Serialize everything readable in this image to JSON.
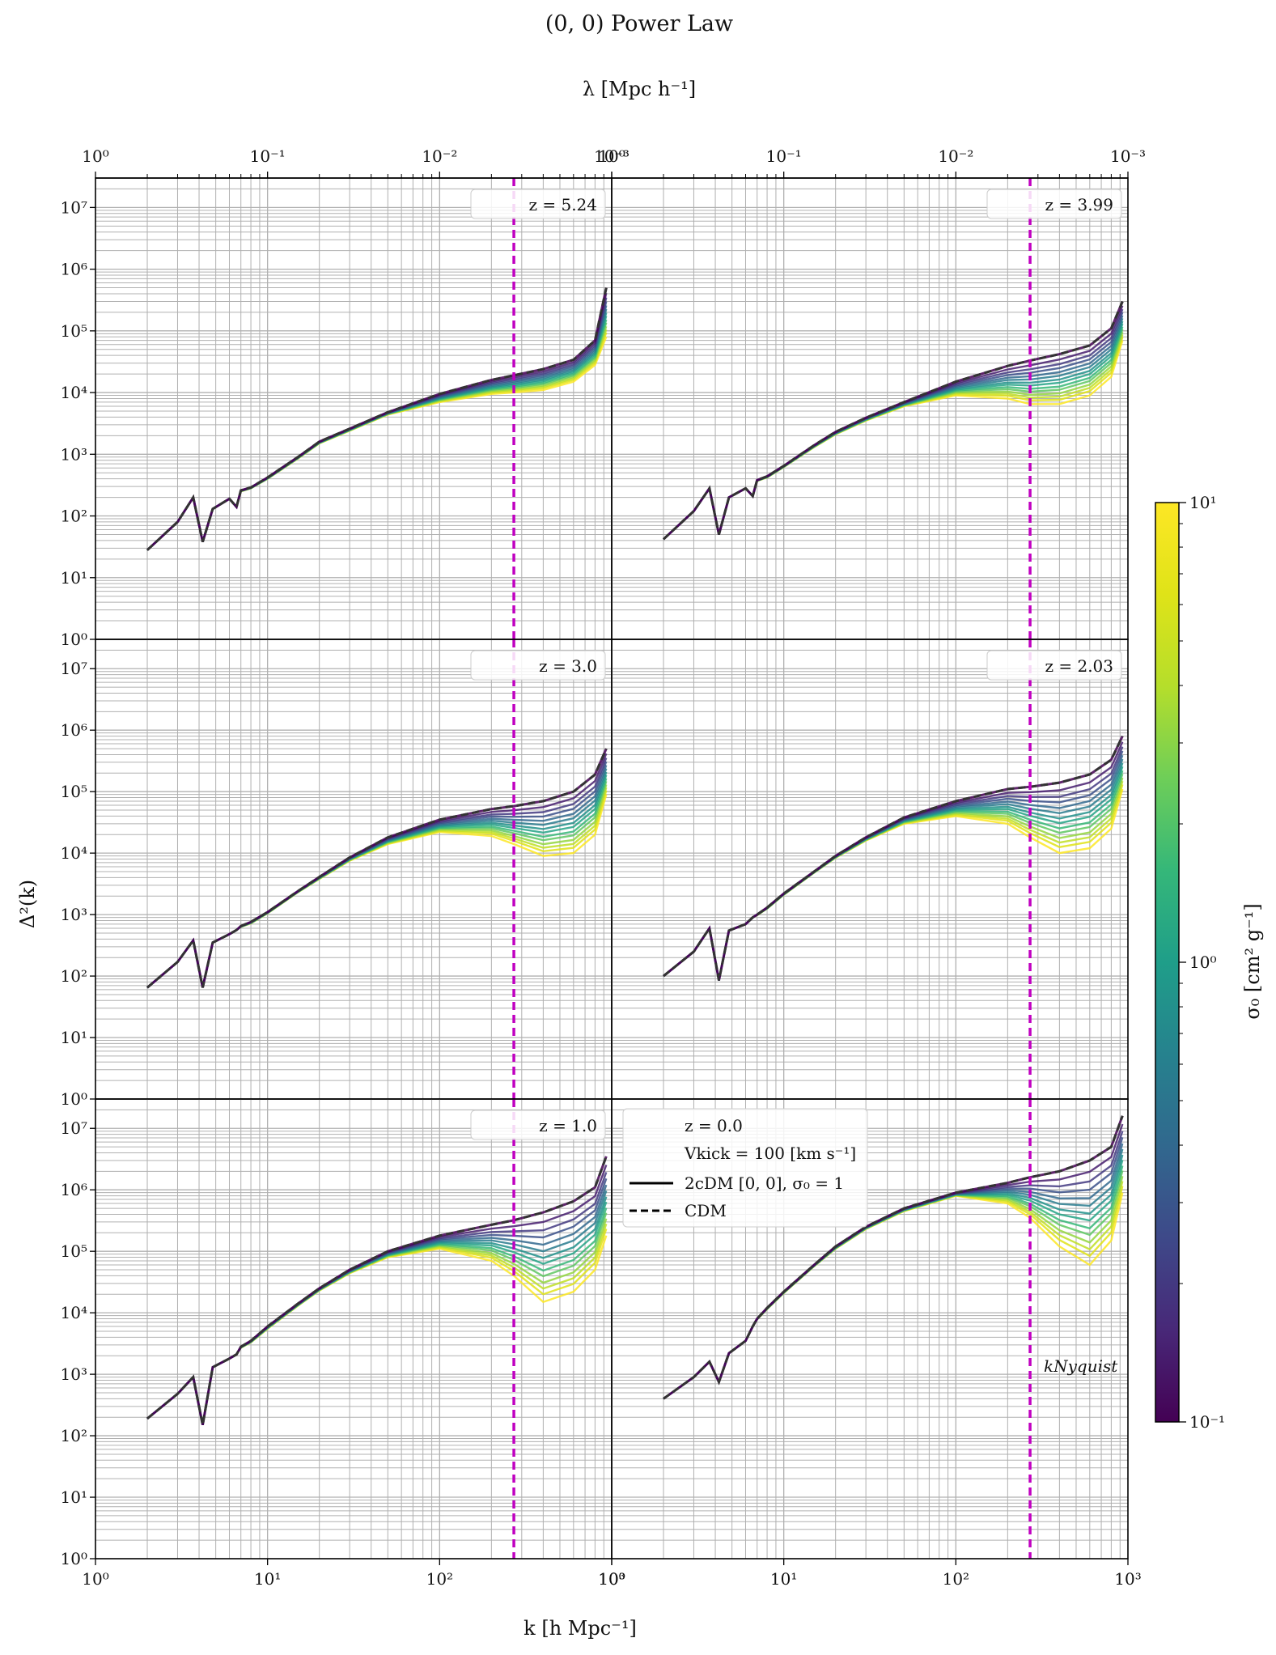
{
  "figure": {
    "title": "(0, 0) Power Law",
    "top_axis_label": "λ [Mpc h⁻¹]",
    "bottom_axis_label": "k [h Mpc⁻¹]",
    "y_axis_label": "Δ²(k)",
    "colorbar_label": "σ₀ [cm² g⁻¹]",
    "nyquist_label": "kNyquist"
  },
  "chart_data": {
    "type": "line",
    "layout": "3 rows × 2 columns, shared axes",
    "x_scale": "log",
    "y_scale": "log",
    "xlim": [
      1,
      1000
    ],
    "ylim": [
      1,
      30000000
    ],
    "x_ticks": [
      "10⁰",
      "10¹",
      "10²",
      "10³"
    ],
    "y_ticks": [
      "10⁰",
      "10¹",
      "10²",
      "10³",
      "10⁴",
      "10⁵",
      "10⁶",
      "10⁷"
    ],
    "top_ticks": [
      "10⁰",
      "10⁻¹",
      "10⁻²",
      "10⁻³"
    ],
    "grid": "major and minor on",
    "vline_k": 270,
    "vline_color": "#c000c0",
    "cdm_color": "#333333",
    "colormap": "viridis",
    "colorbar_range": [
      0.1,
      10
    ],
    "colorbar_ticks": [
      "10⁻¹",
      "10⁰",
      "10¹"
    ],
    "sigma_values": [
      0.1,
      0.14,
      0.2,
      0.28,
      0.4,
      0.56,
      0.8,
      1.1,
      1.6,
      2.2,
      3.2,
      4.5,
      6.3,
      10
    ],
    "legend": {
      "placement": "bottom-right panel, upper-left",
      "header": "z = 0.0",
      "vkick": "Vkick = 100 [km s⁻¹]",
      "entries": [
        "2cDM [0, 0], σ₀ = 1",
        "CDM"
      ]
    },
    "panels": [
      {
        "z_label": "z = 5.24",
        "k": [
          2,
          3,
          3.7,
          4.2,
          4.8,
          6,
          6.6,
          7,
          8,
          10,
          15,
          20,
          30,
          50,
          100,
          200,
          270,
          400,
          600,
          800,
          930
        ],
        "cdm": [
          28,
          80,
          200,
          38,
          130,
          190,
          140,
          260,
          290,
          420,
          900,
          1600,
          2600,
          4800,
          9500,
          16000,
          19000,
          24000,
          34000,
          70000,
          500000
        ],
        "weak": [
          28,
          80,
          200,
          38,
          130,
          190,
          140,
          250,
          280,
          400,
          850,
          1500,
          2400,
          4400,
          7000,
          9500,
          10000,
          11000,
          15000,
          28000,
          80000
        ]
      },
      {
        "z_label": "z = 3.99",
        "k": [
          2,
          3,
          3.7,
          4.2,
          4.8,
          6,
          6.6,
          7,
          8,
          10,
          15,
          20,
          30,
          50,
          100,
          200,
          270,
          400,
          600,
          800,
          930
        ],
        "cdm": [
          42,
          120,
          280,
          50,
          200,
          280,
          210,
          380,
          440,
          650,
          1400,
          2300,
          3900,
          7000,
          15000,
          27000,
          33000,
          42000,
          58000,
          110000,
          300000
        ],
        "weak": [
          42,
          120,
          280,
          50,
          200,
          280,
          210,
          370,
          420,
          620,
          1300,
          2100,
          3500,
          6000,
          9000,
          8000,
          6500,
          6500,
          9000,
          18000,
          70000
        ]
      },
      {
        "z_label": "z = 3.0",
        "k": [
          2,
          3,
          3.7,
          4.2,
          4.8,
          6,
          6.6,
          7,
          8,
          10,
          15,
          20,
          30,
          50,
          100,
          200,
          270,
          400,
          600,
          800,
          930
        ],
        "cdm": [
          65,
          170,
          380,
          65,
          350,
          480,
          560,
          650,
          760,
          1100,
          2400,
          4100,
          8500,
          18000,
          35000,
          52000,
          58000,
          70000,
          100000,
          190000,
          500000
        ],
        "weak": [
          65,
          170,
          380,
          65,
          350,
          480,
          560,
          630,
          720,
          1050,
          2300,
          3800,
          7500,
          14000,
          22000,
          19000,
          14000,
          9000,
          10000,
          20000,
          90000
        ]
      },
      {
        "z_label": "z = 2.03",
        "k": [
          2,
          3,
          3.7,
          4.2,
          4.8,
          6,
          6.6,
          7,
          8,
          10,
          15,
          20,
          30,
          50,
          100,
          200,
          270,
          400,
          600,
          800,
          930
        ],
        "cdm": [
          100,
          250,
          600,
          85,
          550,
          700,
          900,
          1000,
          1300,
          2200,
          5000,
          9000,
          18000,
          38000,
          70000,
          110000,
          120000,
          140000,
          190000,
          330000,
          800000
        ],
        "weak": [
          100,
          250,
          600,
          85,
          550,
          700,
          900,
          980,
          1250,
          2100,
          4800,
          8400,
          16000,
          30000,
          40000,
          30000,
          18000,
          10000,
          12000,
          25000,
          110000
        ]
      },
      {
        "z_label": "z = 1.0",
        "k": [
          2,
          3,
          3.7,
          4.2,
          4.8,
          6,
          6.6,
          7,
          8,
          10,
          15,
          20,
          30,
          50,
          100,
          200,
          270,
          400,
          600,
          800,
          930
        ],
        "cdm": [
          190,
          480,
          900,
          150,
          1300,
          1800,
          2100,
          2800,
          3500,
          6000,
          14000,
          25000,
          50000,
          100000,
          180000,
          270000,
          320000,
          430000,
          650000,
          1100000,
          3500000
        ],
        "weak": [
          190,
          480,
          900,
          150,
          1300,
          1800,
          2100,
          2700,
          3300,
          5500,
          13000,
          23000,
          44000,
          80000,
          110000,
          70000,
          40000,
          15000,
          22000,
          50000,
          180000
        ]
      },
      {
        "z_label": "",
        "k": [
          2,
          3,
          3.7,
          4.2,
          4.8,
          6,
          6.6,
          7,
          8,
          10,
          15,
          20,
          30,
          50,
          100,
          200,
          270,
          400,
          600,
          800,
          930
        ],
        "cdm": [
          400,
          900,
          1600,
          750,
          2200,
          3500,
          6000,
          8000,
          12000,
          22000,
          60000,
          120000,
          250000,
          500000,
          900000,
          1300000,
          1600000,
          2000000,
          3000000,
          5000000,
          16000000
        ],
        "weak": [
          400,
          900,
          1600,
          750,
          2200,
          3500,
          6000,
          7800,
          11500,
          21000,
          57000,
          110000,
          230000,
          450000,
          800000,
          600000,
          350000,
          120000,
          60000,
          150000,
          900000
        ]
      }
    ]
  }
}
